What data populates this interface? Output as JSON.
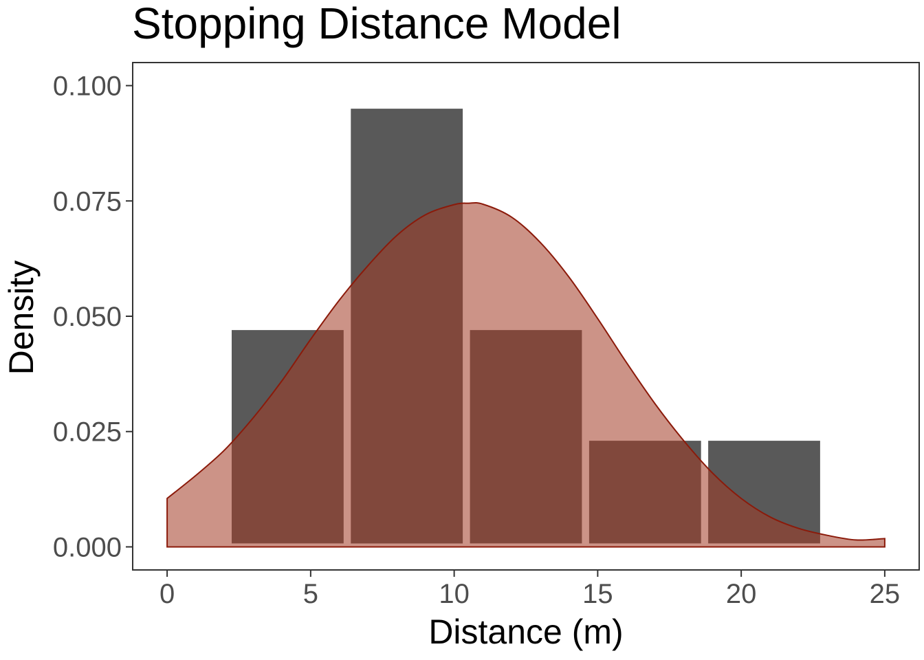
{
  "chart_data": {
    "type": "bar",
    "title": "Stopping Distance Model",
    "xlabel": "Distance (m)",
    "ylabel": "Density",
    "xlim": [
      -1.2,
      26.2
    ],
    "ylim": [
      -0.005,
      0.105
    ],
    "xticks": [
      "0",
      "5",
      "10",
      "15",
      "20",
      "25"
    ],
    "yticks": [
      "0.000",
      "0.025",
      "0.050",
      "0.075",
      "0.100"
    ],
    "histogram": {
      "bins": [
        {
          "x0": 2.25,
          "x1": 6.15,
          "density": 0.047
        },
        {
          "x0": 6.4,
          "x1": 10.3,
          "density": 0.095
        },
        {
          "x0": 10.55,
          "x1": 14.45,
          "density": 0.047
        },
        {
          "x0": 14.7,
          "x1": 18.6,
          "density": 0.023
        },
        {
          "x0": 18.85,
          "x1": 22.75,
          "density": 0.023
        }
      ],
      "color": "#595959"
    },
    "density_curve": {
      "x": [
        0,
        1,
        2,
        3,
        4,
        5,
        6,
        7,
        8,
        9,
        10,
        10.5,
        11,
        12,
        13,
        14,
        15,
        16,
        17,
        18,
        19,
        20,
        21,
        22,
        23,
        24,
        25
      ],
      "y": [
        0.0105,
        0.0155,
        0.021,
        0.028,
        0.036,
        0.045,
        0.0535,
        0.061,
        0.0675,
        0.072,
        0.0742,
        0.0745,
        0.0743,
        0.0715,
        0.066,
        0.0585,
        0.0495,
        0.04,
        0.031,
        0.023,
        0.016,
        0.0105,
        0.0065,
        0.004,
        0.0025,
        0.0015,
        0.0018
      ],
      "fill": "#a33b24",
      "fill_opacity": 0.55,
      "stroke": "#8b1a0a"
    },
    "grid": false,
    "legend": "none"
  }
}
